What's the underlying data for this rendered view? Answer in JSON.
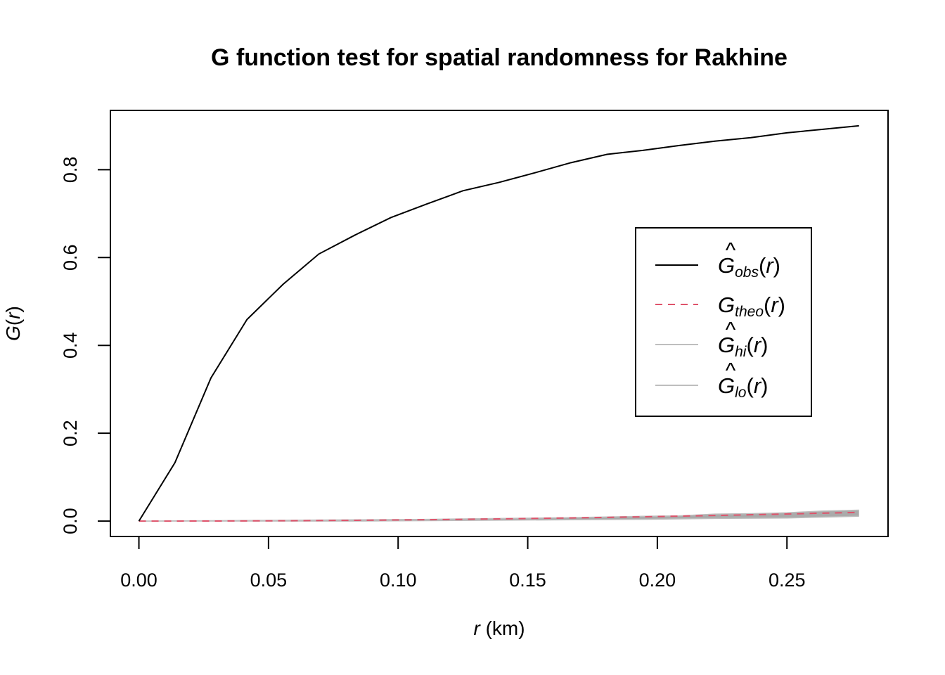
{
  "chart_data": {
    "type": "line",
    "title": "G function test for spatial randomness for Rakhine",
    "xlabel": {
      "var": "r",
      "unit": "(km)"
    },
    "ylabel": {
      "func": "G",
      "var": "r"
    },
    "xlim": [
      -0.011,
      0.289
    ],
    "ylim": [
      -0.035,
      0.935
    ],
    "xticks": [
      "0.00",
      "0.05",
      "0.10",
      "0.15",
      "0.20",
      "0.25"
    ],
    "yticks": [
      "0.0",
      "0.2",
      "0.4",
      "0.6",
      "0.8"
    ],
    "grid": false,
    "legend_position": "right",
    "colors": {
      "obs": "#000000",
      "theo": "#DF536B",
      "envelope": "#AAAAAA",
      "envelope_line": "#BEBEBE"
    },
    "series": [
      {
        "key": "obs",
        "label": "Ĝobs(r)",
        "legend_base": "G",
        "legend_hat": "^",
        "legend_sub": "obs",
        "legend_arg": "(r)",
        "style": "solid",
        "x": [
          0,
          0.0139,
          0.0278,
          0.0417,
          0.0556,
          0.0694,
          0.0833,
          0.0972,
          0.1111,
          0.125,
          0.1389,
          0.1528,
          0.1667,
          0.1806,
          0.1944,
          0.2083,
          0.2222,
          0.2361,
          0.25,
          0.2639,
          0.2778
        ],
        "y": [
          0,
          0.133,
          0.326,
          0.459,
          0.539,
          0.608,
          0.651,
          0.691,
          0.722,
          0.752,
          0.771,
          0.793,
          0.816,
          0.835,
          0.844,
          0.855,
          0.865,
          0.873,
          0.884,
          0.892,
          0.9
        ]
      },
      {
        "key": "theo",
        "label": "Gtheo(r)",
        "legend_base": "G",
        "legend_hat": "",
        "legend_sub": "theo",
        "legend_arg": "(r)",
        "style": "dashed",
        "x": [
          0,
          0.0278,
          0.0556,
          0.0833,
          0.1111,
          0.1389,
          0.1667,
          0.1944,
          0.2222,
          0.25,
          0.2778
        ],
        "y": [
          0,
          0.0002,
          0.0008,
          0.0018,
          0.0032,
          0.005,
          0.0072,
          0.0098,
          0.0128,
          0.0162,
          0.0199
        ]
      },
      {
        "key": "hi",
        "label": "Ĝhi(r)",
        "legend_base": "G",
        "legend_hat": "^",
        "legend_sub": "hi",
        "legend_arg": "(r)",
        "style": "envelope-upper",
        "x": [
          0,
          0.0278,
          0.0556,
          0.0833,
          0.1111,
          0.1389,
          0.1667,
          0.1944,
          0.2083,
          0.2222,
          0.2361,
          0.25,
          0.2639,
          0.2778
        ],
        "y": [
          0,
          0.001,
          0.002,
          0.003,
          0.004,
          0.006,
          0.008,
          0.011,
          0.012,
          0.016,
          0.017,
          0.019,
          0.023,
          0.025
        ]
      },
      {
        "key": "lo",
        "label": "Ĝlo(r)",
        "legend_base": "G",
        "legend_hat": "^",
        "legend_sub": "lo",
        "legend_arg": "(r)",
        "style": "envelope-lower",
        "x": [
          0,
          0.0278,
          0.0556,
          0.0833,
          0.1111,
          0.1389,
          0.1667,
          0.1944,
          0.2222,
          0.25,
          0.2778
        ],
        "y": [
          0,
          0,
          0,
          0,
          0.001,
          0.002,
          0.003,
          0.004,
          0.006,
          0.007,
          0.011
        ]
      }
    ]
  }
}
